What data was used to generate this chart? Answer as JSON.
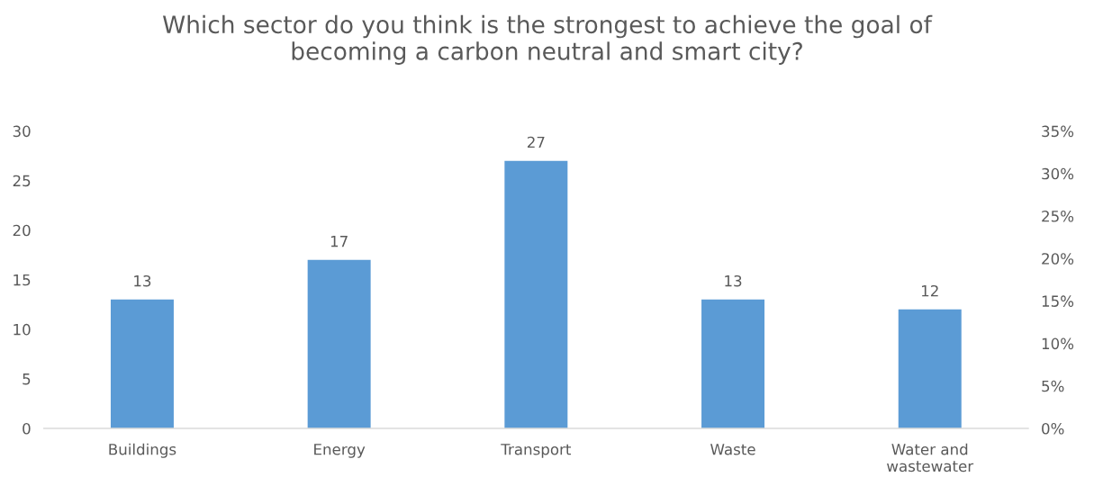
{
  "chart_data": {
    "type": "bar",
    "title": "Which sector do you think is the strongest to achieve the goal of\nbecoming a carbon neutral and smart city?",
    "categories": [
      "Buildings",
      "Energy",
      "Transport",
      "Waste",
      "Water and\nwastewater"
    ],
    "values": [
      13,
      17,
      27,
      13,
      12
    ],
    "color": "#5b9bd5",
    "data_labels": true,
    "ylim": [
      0,
      30
    ],
    "yticks": [
      0,
      5,
      10,
      15,
      20,
      25,
      30
    ],
    "y2lim": [
      0,
      35
    ],
    "y2ticks": [
      {
        "value": 0,
        "label": "0%"
      },
      {
        "value": 5,
        "label": "5%"
      },
      {
        "value": 10,
        "label": "10%"
      },
      {
        "value": 15,
        "label": "15%"
      },
      {
        "value": 20,
        "label": "20%"
      },
      {
        "value": 25,
        "label": "25%"
      },
      {
        "value": 30,
        "label": "30%"
      },
      {
        "value": 35,
        "label": "35%"
      }
    ],
    "grid": false,
    "legend": false
  }
}
